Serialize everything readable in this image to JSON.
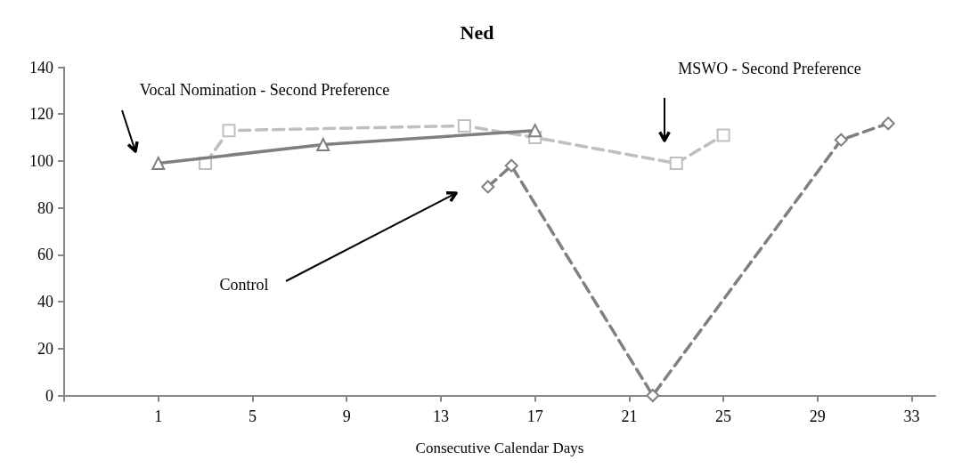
{
  "chart_data": {
    "type": "line",
    "title": "Ned",
    "xlabel": "Consecutive Calendar Days",
    "xlim": [
      -3,
      34
    ],
    "xticks": [
      {
        "value": -3,
        "label": null
      },
      1,
      5,
      9,
      13,
      17,
      21,
      25,
      29,
      33
    ],
    "ylim": [
      0,
      140
    ],
    "yticks": [
      0,
      20,
      40,
      60,
      80,
      100,
      120,
      140
    ],
    "grid": false,
    "series": [
      {
        "color": "#7f7f7f",
        "x": [
          1,
          8,
          17
        ],
        "values": [
          99,
          107,
          113
        ],
        "marker": "triangle",
        "line_style": "solid"
      },
      {
        "color": "#bfbfbf",
        "x": [
          3,
          4,
          14,
          17,
          23,
          25
        ],
        "values": [
          99,
          113,
          115,
          110,
          99,
          111
        ],
        "marker": "square",
        "line_style": "dashed"
      },
      {
        "color": "#808080",
        "x": [
          15,
          16,
          22,
          30,
          32
        ],
        "values": [
          89,
          98,
          0,
          109,
          116
        ],
        "marker": "diamond",
        "line_style": "dashed"
      }
    ],
    "annotations": [
      "Vocal Nomination - Second Preference",
      "MSWO - Second Preference",
      "Control"
    ]
  }
}
